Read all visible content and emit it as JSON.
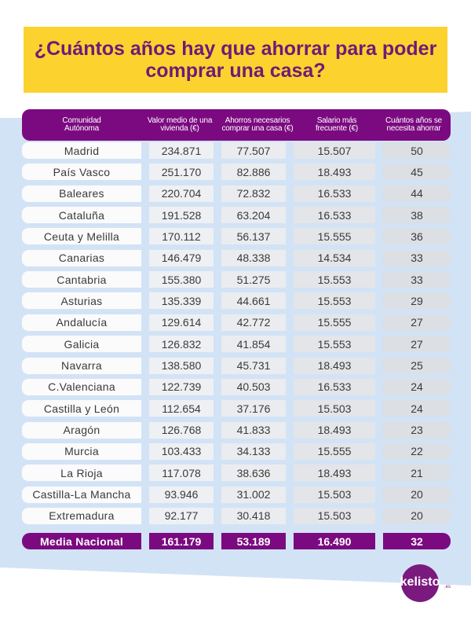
{
  "title": "¿Cuántos años hay que ahorrar para poder comprar una casa?",
  "columns": [
    "Comunidad Autónoma",
    "Valor medio de una vivienda (€)",
    "Ahorros necesarios comprar una casa (€)",
    "Salario más frecuente (€)",
    "Cuántos años se necesita ahorrar"
  ],
  "rows": [
    [
      "Madrid",
      "234.871",
      "77.507",
      "15.507",
      "50"
    ],
    [
      "País Vasco",
      "251.170",
      "82.886",
      "18.493",
      "45"
    ],
    [
      "Baleares",
      "220.704",
      "72.832",
      "16.533",
      "44"
    ],
    [
      "Cataluña",
      "191.528",
      "63.204",
      "16.533",
      "38"
    ],
    [
      "Ceuta y Melilla",
      "170.112",
      "56.137",
      "15.555",
      "36"
    ],
    [
      "Canarias",
      "146.479",
      "48.338",
      "14.534",
      "33"
    ],
    [
      "Cantabria",
      "155.380",
      "51.275",
      "15.553",
      "33"
    ],
    [
      "Asturias",
      "135.339",
      "44.661",
      "15.553",
      "29"
    ],
    [
      "Andalucía",
      "129.614",
      "42.772",
      "15.555",
      "27"
    ],
    [
      "Galicia",
      "126.832",
      "41.854",
      "15.553",
      "27"
    ],
    [
      "Navarra",
      "138.580",
      "45.731",
      "18.493",
      "25"
    ],
    [
      "C.Valenciana",
      "122.739",
      "40.503",
      "16.533",
      "24"
    ],
    [
      "Castilla y León",
      "112.654",
      "37.176",
      "15.503",
      "24"
    ],
    [
      "Aragón",
      "126.768",
      "41.833",
      "18.493",
      "23"
    ],
    [
      "Murcia",
      "103.433",
      "34.133",
      "15.555",
      "22"
    ],
    [
      "La Rioja",
      "117.078",
      "38.636",
      "18.493",
      "21"
    ],
    [
      "Castilla-La Mancha",
      "93.946",
      "31.002",
      "15.503",
      "20"
    ],
    [
      "Extremadura",
      "92.177",
      "30.418",
      "15.503",
      "20"
    ]
  ],
  "total": [
    "Media Nacional",
    "161.179",
    "53.189",
    "16.490",
    "32"
  ],
  "logo": {
    "text": "kelisto",
    "suffix": ".es"
  },
  "colors": {
    "accent": "#7b0a80",
    "banner": "#fcd22e",
    "background": "#d3e3f6"
  }
}
